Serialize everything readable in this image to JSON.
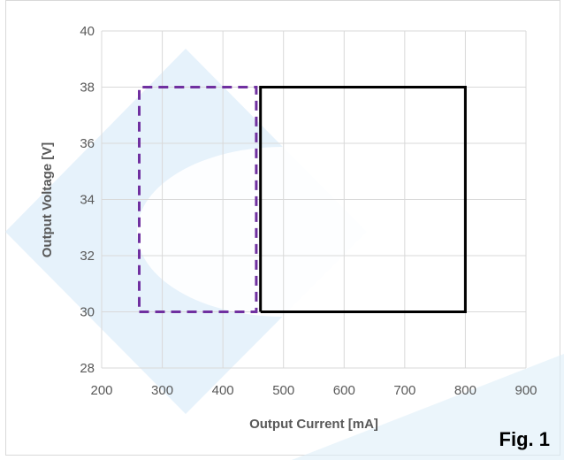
{
  "chart_data": {
    "type": "line",
    "title": "",
    "xlabel": "Output Current [mA]",
    "ylabel": "Output Voltage [V]",
    "xlim": [
      200,
      900
    ],
    "ylim": [
      28,
      40
    ],
    "x_ticks": [
      200,
      300,
      400,
      500,
      600,
      700,
      800,
      900
    ],
    "y_ticks": [
      28,
      30,
      32,
      34,
      36,
      38,
      40
    ],
    "grid": true,
    "legend": "none",
    "series": [
      {
        "style": "dashed",
        "color": "#7030A0",
        "x": [
          262,
          455,
          455,
          262,
          262
        ],
        "y": [
          30,
          30,
          38,
          38,
          30
        ]
      },
      {
        "style": "solid",
        "color": "#000000",
        "x": [
          462,
          800,
          800,
          462,
          462
        ],
        "y": [
          30,
          30,
          38,
          38,
          30
        ]
      }
    ],
    "annotation": "Fig. 1"
  },
  "watermark": {
    "color": "#DDEEF9",
    "icon": "diamond-watermark"
  }
}
